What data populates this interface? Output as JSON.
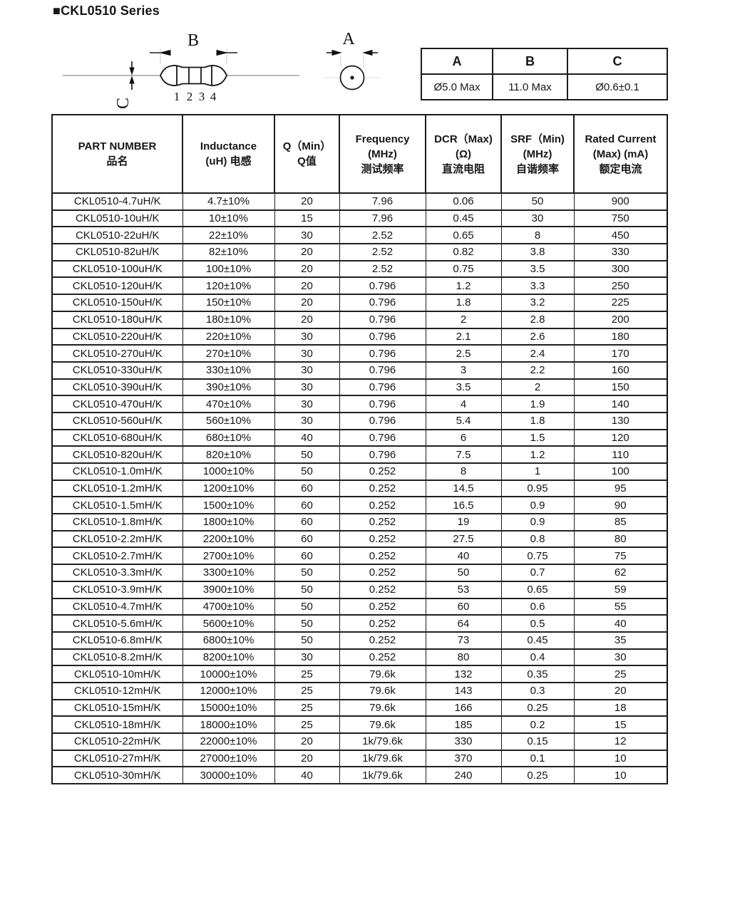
{
  "page": {
    "title": "■CKL0510 Series"
  },
  "diagram": {
    "dim_b_label": "B",
    "dim_a_label": "A",
    "dim_c_label": "C",
    "pins": [
      "1",
      "2",
      "3",
      "4"
    ]
  },
  "dimensions_table": {
    "headers": [
      "A",
      "B",
      "C"
    ],
    "values": [
      "Ø5.0 Max",
      "11.0 Max",
      "Ø0.6±0.1"
    ]
  },
  "main_table": {
    "headers": [
      {
        "lines": [
          "PART NUMBER",
          "品名"
        ]
      },
      {
        "lines": [
          "Inductance",
          "(uH) 电感"
        ]
      },
      {
        "lines": [
          "Q（Min）",
          "Q值"
        ]
      },
      {
        "lines": [
          "Frequency",
          "(MHz)",
          "测试频率"
        ]
      },
      {
        "lines": [
          "DCR（Max)",
          "(Ω)",
          "直流电阻"
        ]
      },
      {
        "lines": [
          "SRF（Min)",
          "(MHz)",
          "自谐频率"
        ]
      },
      {
        "lines": [
          "Rated Current",
          "(Max) (mA)",
          "额定电流"
        ]
      }
    ],
    "rows": [
      [
        "CKL0510-4.7uH/K",
        "4.7±10%",
        "20",
        "7.96",
        "0.06",
        "50",
        "900"
      ],
      [
        "CKL0510-10uH/K",
        "10±10%",
        "15",
        "7.96",
        "0.45",
        "30",
        "750"
      ],
      [
        "CKL0510-22uH/K",
        "22±10%",
        "30",
        "2.52",
        "0.65",
        "8",
        "450"
      ],
      [
        "CKL0510-82uH/K",
        "82±10%",
        "20",
        "2.52",
        "0.82",
        "3.8",
        "330"
      ],
      [
        "CKL0510-100uH/K",
        "100±10%",
        "20",
        "2.52",
        "0.75",
        "3.5",
        "300"
      ],
      [
        "CKL0510-120uH/K",
        "120±10%",
        "20",
        "0.796",
        "1.2",
        "3.3",
        "250"
      ],
      [
        "CKL0510-150uH/K",
        "150±10%",
        "20",
        "0.796",
        "1.8",
        "3.2",
        "225"
      ],
      [
        "CKL0510-180uH/K",
        "180±10%",
        "20",
        "0.796",
        "2",
        "2.8",
        "200"
      ],
      [
        "CKL0510-220uH/K",
        "220±10%",
        "30",
        "0.796",
        "2.1",
        "2.6",
        "180"
      ],
      [
        "CKL0510-270uH/K",
        "270±10%",
        "30",
        "0.796",
        "2.5",
        "2.4",
        "170"
      ],
      [
        "CKL0510-330uH/K",
        "330±10%",
        "30",
        "0.796",
        "3",
        "2.2",
        "160"
      ],
      [
        "CKL0510-390uH/K",
        "390±10%",
        "30",
        "0.796",
        "3.5",
        "2",
        "150"
      ],
      [
        "CKL0510-470uH/K",
        "470±10%",
        "30",
        "0.796",
        "4",
        "1.9",
        "140"
      ],
      [
        "CKL0510-560uH/K",
        "560±10%",
        "30",
        "0.796",
        "5.4",
        "1.8",
        "130"
      ],
      [
        "CKL0510-680uH/K",
        "680±10%",
        "40",
        "0.796",
        "6",
        "1.5",
        "120"
      ],
      [
        "CKL0510-820uH/K",
        "820±10%",
        "50",
        "0.796",
        "7.5",
        "1.2",
        "110"
      ],
      [
        "CKL0510-1.0mH/K",
        "1000±10%",
        "50",
        "0.252",
        "8",
        "1",
        "100"
      ],
      [
        "CKL0510-1.2mH/K",
        "1200±10%",
        "60",
        "0.252",
        "14.5",
        "0.95",
        "95"
      ],
      [
        "CKL0510-1.5mH/K",
        "1500±10%",
        "60",
        "0.252",
        "16.5",
        "0.9",
        "90"
      ],
      [
        "CKL0510-1.8mH/K",
        "1800±10%",
        "60",
        "0.252",
        "19",
        "0.9",
        "85"
      ],
      [
        "CKL0510-2.2mH/K",
        "2200±10%",
        "60",
        "0.252",
        "27.5",
        "0.8",
        "80"
      ],
      [
        "CKL0510-2.7mH/K",
        "2700±10%",
        "60",
        "0.252",
        "40",
        "0.75",
        "75"
      ],
      [
        "CKL0510-3.3mH/K",
        "3300±10%",
        "50",
        "0.252",
        "50",
        "0.7",
        "62"
      ],
      [
        "CKL0510-3.9mH/K",
        "3900±10%",
        "50",
        "0.252",
        "53",
        "0.65",
        "59"
      ],
      [
        "CKL0510-4.7mH/K",
        "4700±10%",
        "50",
        "0.252",
        "60",
        "0.6",
        "55"
      ],
      [
        "CKL0510-5.6mH/K",
        "5600±10%",
        "50",
        "0.252",
        "64",
        "0.5",
        "40"
      ],
      [
        "CKL0510-6.8mH/K",
        "6800±10%",
        "50",
        "0.252",
        "73",
        "0.45",
        "35"
      ],
      [
        "CKL0510-8.2mH/K",
        "8200±10%",
        "30",
        "0.252",
        "80",
        "0.4",
        "30"
      ],
      [
        "CKL0510-10mH/K",
        "10000±10%",
        "25",
        "79.6k",
        "132",
        "0.35",
        "25"
      ],
      [
        "CKL0510-12mH/K",
        "12000±10%",
        "25",
        "79.6k",
        "143",
        "0.3",
        "20"
      ],
      [
        "CKL0510-15mH/K",
        "15000±10%",
        "25",
        "79.6k",
        "166",
        "0.25",
        "18"
      ],
      [
        "CKL0510-18mH/K",
        "18000±10%",
        "25",
        "79.6k",
        "185",
        "0.2",
        "15"
      ],
      [
        "CKL0510-22mH/K",
        "22000±10%",
        "20",
        "1k/79.6k",
        "330",
        "0.15",
        "12"
      ],
      [
        "CKL0510-27mH/K",
        "27000±10%",
        "20",
        "1k/79.6k",
        "370",
        "0.1",
        "10"
      ],
      [
        "CKL0510-30mH/K",
        "30000±10%",
        "40",
        "1k/79.6k",
        "240",
        "0.25",
        "10"
      ]
    ]
  }
}
